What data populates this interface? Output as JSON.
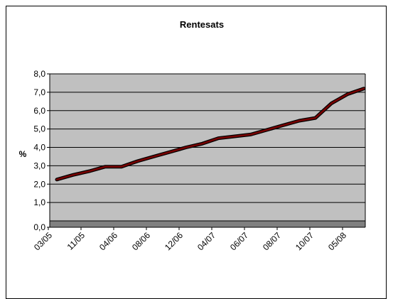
{
  "chart_data": {
    "type": "line",
    "title": "Rentesats",
    "xlabel": "",
    "ylabel": "%",
    "ylim": [
      0,
      8
    ],
    "y_ticks": [
      "0,0",
      "1,0",
      "2,0",
      "3,0",
      "4,0",
      "5,0",
      "6,0",
      "7,0",
      "8,0"
    ],
    "x_tick_labels": [
      "03/05",
      "11/05",
      "04/06",
      "08/06",
      "12/06",
      "04/07",
      "06/07",
      "08/07",
      "10/07",
      "05/08"
    ],
    "grid": true,
    "legend": "none",
    "series": [
      {
        "values": [
          2.25,
          2.5,
          2.7,
          2.95,
          2.95,
          3.25,
          3.5,
          3.75,
          4.0,
          4.2,
          4.5,
          4.6,
          4.7,
          4.95,
          5.2,
          5.45,
          5.6,
          6.4,
          6.9,
          7.2
        ]
      }
    ],
    "colors": {
      "plot_background": "#c0c0c0",
      "floor": "#808080",
      "line": "#7a0000",
      "line_edge": "#000000",
      "grid": "#000000"
    }
  }
}
